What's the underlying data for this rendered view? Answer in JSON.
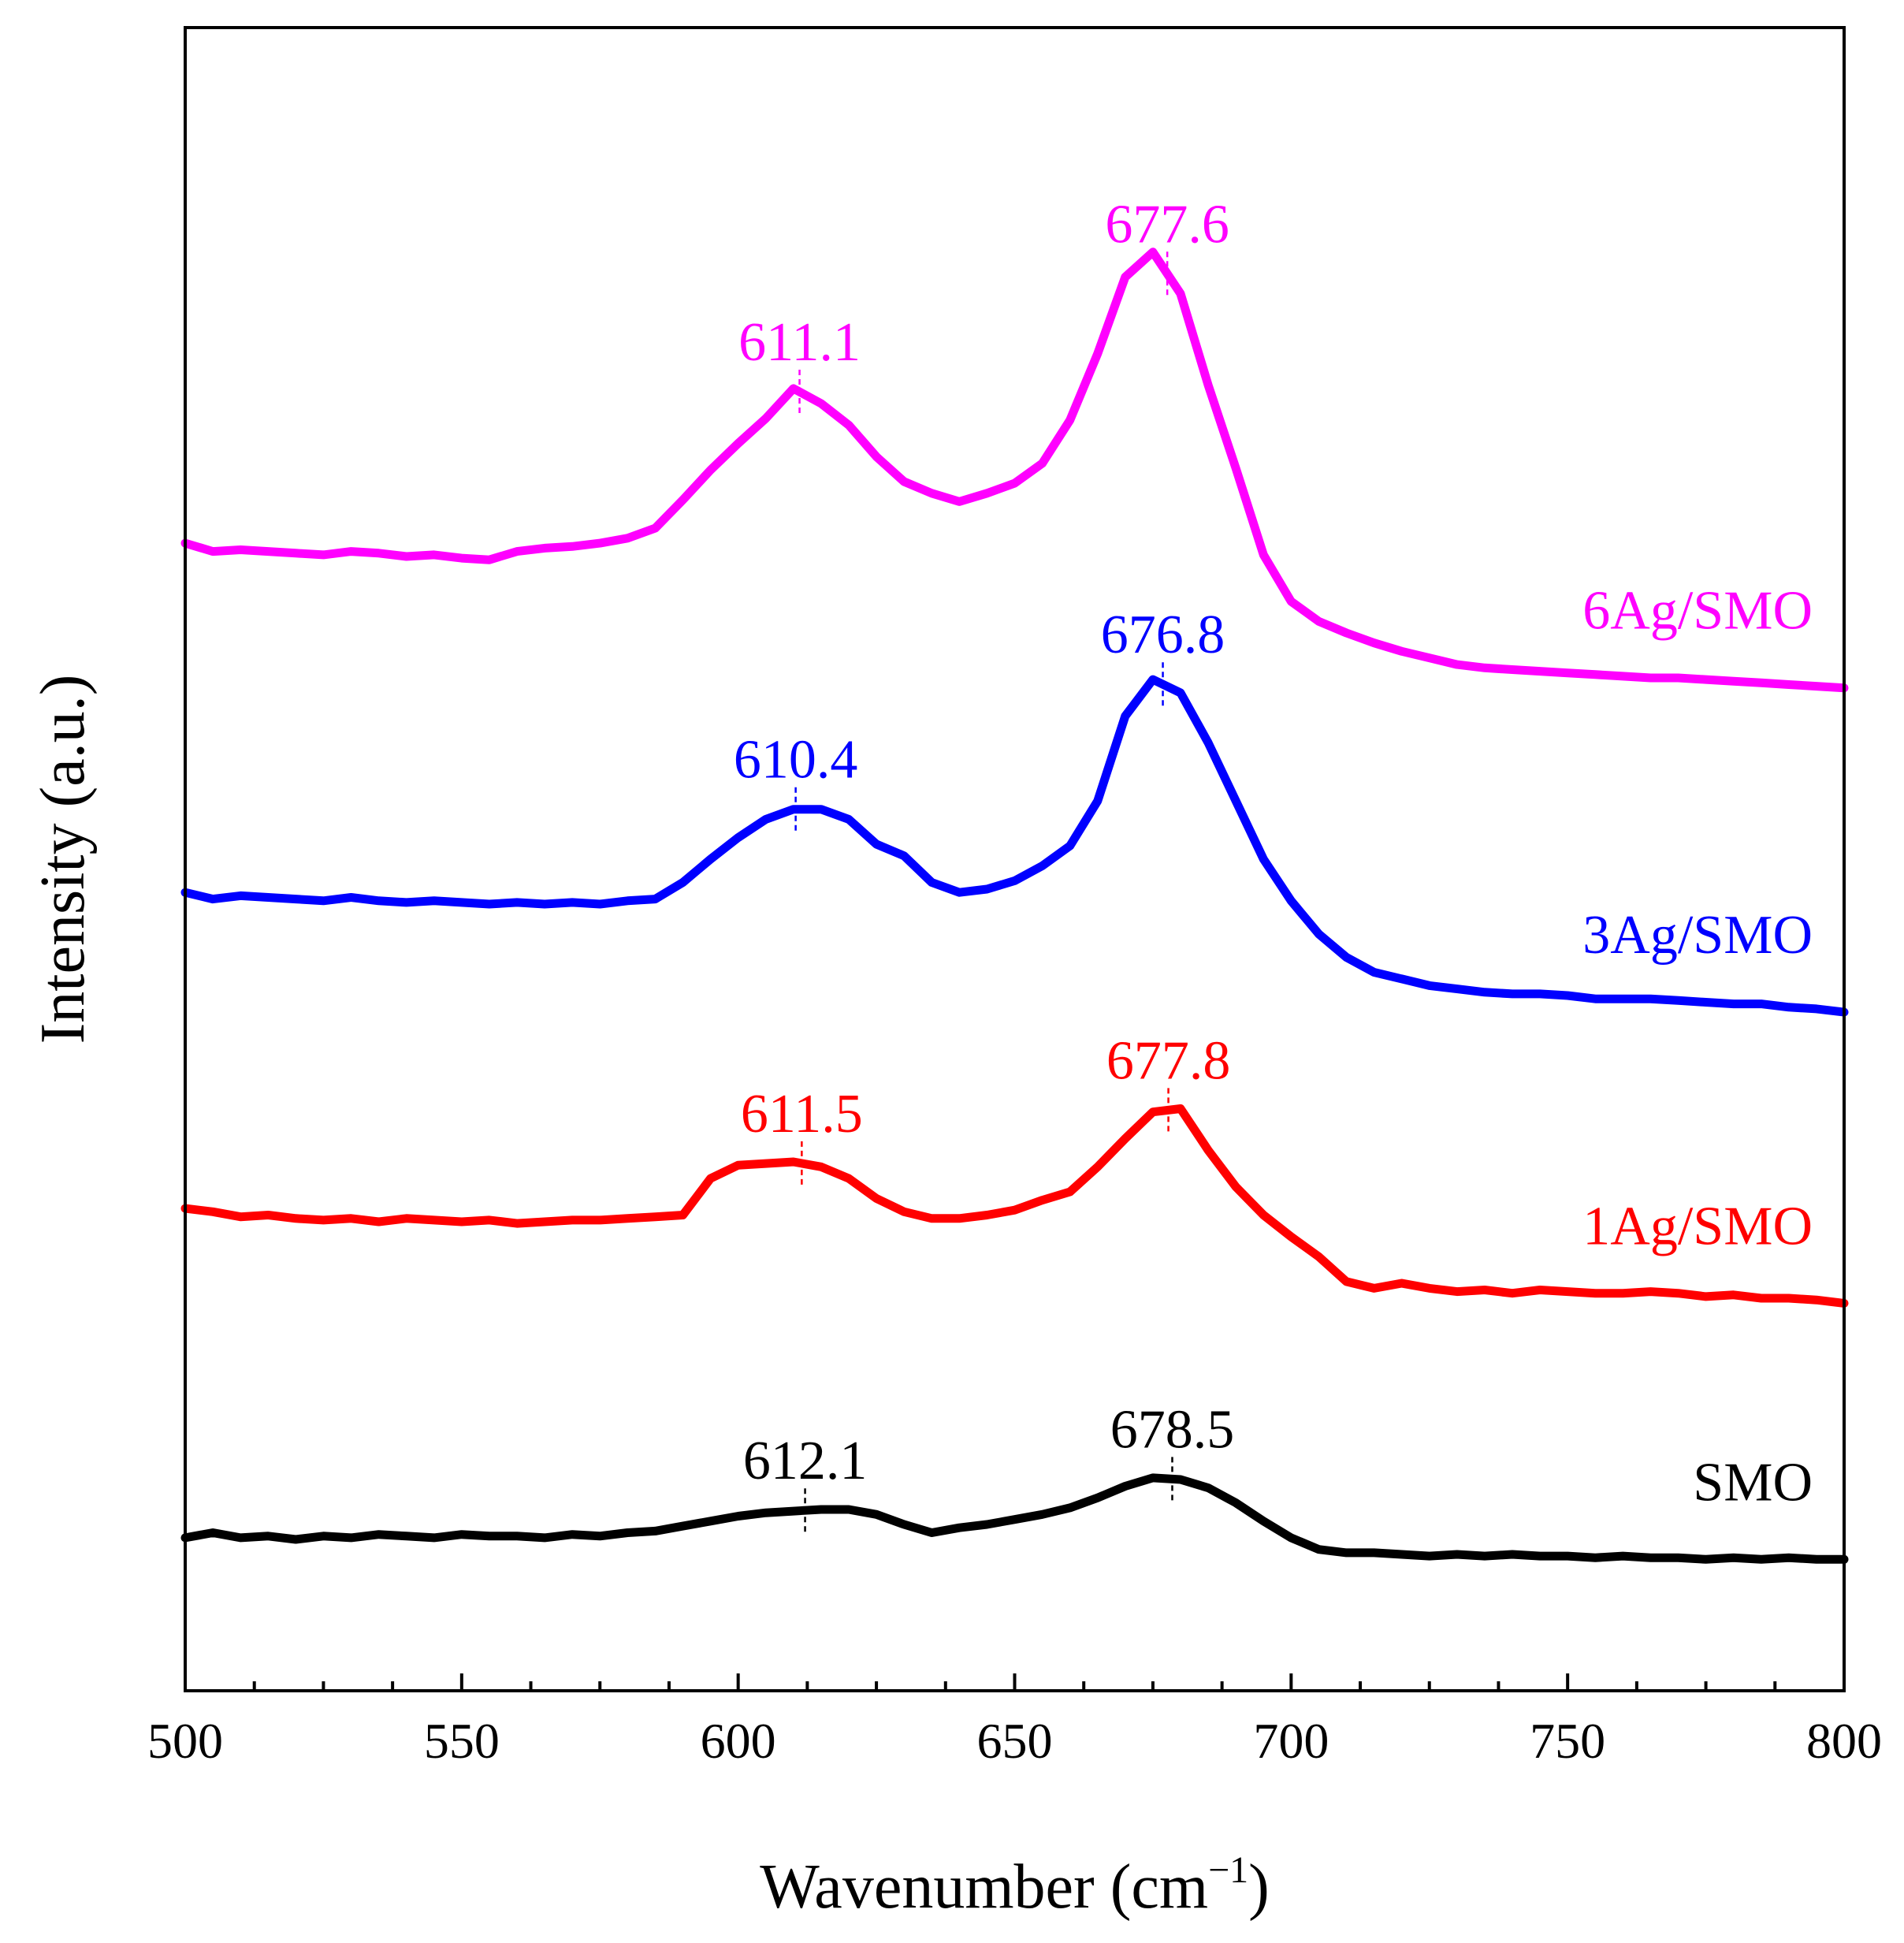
{
  "chart_data": {
    "type": "line",
    "xlabel": "Wavenumber (cm",
    "xlabel_sup": "−1",
    "xlabel_close": ")",
    "ylabel": "Intensity (a.u.)",
    "xlim": [
      500,
      800
    ],
    "ylim": [
      0,
      100
    ],
    "xticks": [
      "500",
      "550",
      "600",
      "650",
      "700",
      "750",
      "800"
    ],
    "grid": false,
    "series": [
      {
        "name": "SMO",
        "color": "#000000",
        "x": [
          500,
          505,
          510,
          515,
          520,
          525,
          530,
          535,
          540,
          545,
          550,
          555,
          560,
          565,
          570,
          575,
          580,
          585,
          590,
          595,
          600,
          605,
          610,
          615,
          620,
          625,
          630,
          635,
          640,
          645,
          650,
          655,
          660,
          665,
          670,
          675,
          680,
          685,
          690,
          695,
          700,
          705,
          710,
          715,
          720,
          725,
          730,
          735,
          740,
          745,
          750,
          755,
          760,
          765,
          770,
          775,
          780,
          785,
          790,
          795,
          800
        ],
        "values": [
          9.2,
          9.5,
          9.2,
          9.3,
          9.1,
          9.3,
          9.2,
          9.4,
          9.3,
          9.2,
          9.4,
          9.3,
          9.3,
          9.2,
          9.4,
          9.3,
          9.5,
          9.6,
          9.9,
          10.2,
          10.5,
          10.7,
          10.8,
          10.9,
          10.9,
          10.6,
          10.0,
          9.5,
          9.8,
          10.0,
          10.3,
          10.6,
          11.0,
          11.6,
          12.3,
          12.8,
          12.7,
          12.2,
          11.3,
          10.2,
          9.2,
          8.5,
          8.3,
          8.3,
          8.2,
          8.1,
          8.2,
          8.1,
          8.2,
          8.1,
          8.1,
          8.0,
          8.1,
          8.0,
          8.0,
          7.9,
          8.0,
          7.9,
          8.0,
          7.9,
          7.9
        ],
        "peaks": [
          {
            "x": 612.1,
            "label": "612.1"
          },
          {
            "x": 678.5,
            "label": "678.5"
          }
        ]
      },
      {
        "name": "1Ag/SMO",
        "color": "#ff0000",
        "x": [
          500,
          505,
          510,
          515,
          520,
          525,
          530,
          535,
          540,
          545,
          550,
          555,
          560,
          565,
          570,
          575,
          580,
          585,
          590,
          595,
          600,
          605,
          610,
          615,
          620,
          625,
          630,
          635,
          640,
          645,
          650,
          655,
          660,
          665,
          670,
          675,
          680,
          685,
          690,
          695,
          700,
          705,
          710,
          715,
          720,
          725,
          730,
          735,
          740,
          745,
          750,
          755,
          760,
          765,
          770,
          775,
          780,
          785,
          790,
          795,
          800
        ],
        "values": [
          29.0,
          28.8,
          28.5,
          28.6,
          28.4,
          28.3,
          28.4,
          28.2,
          28.4,
          28.3,
          28.2,
          28.3,
          28.1,
          28.2,
          28.3,
          28.3,
          28.4,
          28.5,
          28.6,
          30.8,
          31.6,
          31.7,
          31.8,
          31.5,
          30.8,
          29.6,
          28.8,
          28.4,
          28.4,
          28.6,
          28.9,
          29.5,
          30.0,
          31.5,
          33.2,
          34.8,
          35.0,
          32.5,
          30.3,
          28.6,
          27.3,
          26.1,
          24.6,
          24.2,
          24.5,
          24.2,
          24.0,
          24.1,
          23.9,
          24.1,
          24.0,
          23.9,
          23.9,
          24.0,
          23.9,
          23.7,
          23.8,
          23.6,
          23.6,
          23.5,
          23.3
        ],
        "peaks": [
          {
            "x": 611.5,
            "label": "611.5"
          },
          {
            "x": 677.8,
            "label": "677.8"
          }
        ]
      },
      {
        "name": "3Ag/SMO",
        "color": "#0000ff",
        "x": [
          500,
          505,
          510,
          515,
          520,
          525,
          530,
          535,
          540,
          545,
          550,
          555,
          560,
          565,
          570,
          575,
          580,
          585,
          590,
          595,
          600,
          605,
          610,
          615,
          620,
          625,
          630,
          635,
          640,
          645,
          650,
          655,
          660,
          665,
          670,
          675,
          680,
          685,
          690,
          695,
          700,
          705,
          710,
          715,
          720,
          725,
          730,
          735,
          740,
          745,
          750,
          755,
          760,
          765,
          770,
          775,
          780,
          785,
          790,
          795,
          800
        ],
        "values": [
          48.0,
          47.6,
          47.8,
          47.7,
          47.6,
          47.5,
          47.7,
          47.5,
          47.4,
          47.5,
          47.4,
          47.3,
          47.4,
          47.3,
          47.4,
          47.3,
          47.5,
          47.6,
          48.6,
          50.0,
          51.3,
          52.4,
          53.0,
          53.0,
          52.4,
          50.9,
          50.2,
          48.6,
          48.0,
          48.2,
          48.7,
          49.6,
          50.8,
          53.5,
          58.6,
          60.8,
          60.0,
          57.0,
          53.5,
          50.0,
          47.5,
          45.5,
          44.1,
          43.2,
          42.8,
          42.4,
          42.2,
          42.0,
          41.9,
          41.9,
          41.8,
          41.6,
          41.6,
          41.6,
          41.5,
          41.4,
          41.3,
          41.3,
          41.1,
          41.0,
          40.8
        ],
        "peaks": [
          {
            "x": 610.4,
            "label": "610.4"
          },
          {
            "x": 676.8,
            "label": "676.8"
          }
        ]
      },
      {
        "name": "6Ag/SMO",
        "color": "#ff00ff",
        "x": [
          500,
          505,
          510,
          515,
          520,
          525,
          530,
          535,
          540,
          545,
          550,
          555,
          560,
          565,
          570,
          575,
          580,
          585,
          590,
          595,
          600,
          605,
          610,
          615,
          620,
          625,
          630,
          635,
          640,
          645,
          650,
          655,
          660,
          665,
          670,
          675,
          680,
          685,
          690,
          695,
          700,
          705,
          710,
          715,
          720,
          725,
          730,
          735,
          740,
          745,
          750,
          755,
          760,
          765,
          770,
          775,
          780,
          785,
          790,
          795,
          800
        ],
        "values": [
          69.0,
          68.5,
          68.6,
          68.5,
          68.4,
          68.3,
          68.5,
          68.4,
          68.2,
          68.3,
          68.1,
          68.0,
          68.5,
          68.7,
          68.8,
          69.0,
          69.3,
          69.9,
          71.6,
          73.4,
          75.0,
          76.5,
          78.3,
          77.4,
          76.1,
          74.2,
          72.7,
          72.0,
          71.5,
          72.0,
          72.6,
          73.8,
          76.4,
          80.4,
          85.0,
          86.5,
          84.0,
          78.5,
          73.5,
          68.3,
          65.5,
          64.3,
          63.6,
          63.0,
          62.5,
          62.1,
          61.7,
          61.5,
          61.4,
          61.3,
          61.2,
          61.1,
          61.0,
          60.9,
          60.9,
          60.8,
          60.7,
          60.6,
          60.5,
          60.4,
          60.3
        ],
        "peaks": [
          {
            "x": 611.1,
            "label": "611.1"
          },
          {
            "x": 677.6,
            "label": "677.6"
          }
        ]
      }
    ],
    "series_label_positions": "right"
  }
}
